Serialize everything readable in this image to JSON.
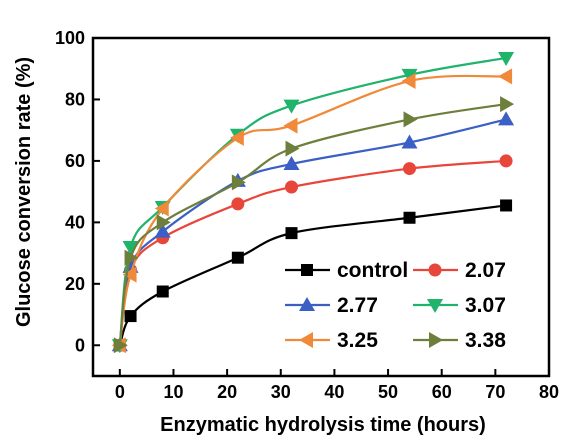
{
  "chart_data": {
    "type": "line",
    "title": "",
    "xlabel": "Enzymatic hydrolysis time (hours)",
    "ylabel": "Glucose conversion rate (%)",
    "xlim": [
      -5,
      80
    ],
    "ylim": [
      -10,
      100
    ],
    "xticks": [
      0,
      10,
      20,
      30,
      40,
      50,
      60,
      70,
      80
    ],
    "yticks": [
      0,
      20,
      40,
      60,
      80,
      100
    ],
    "x": [
      0,
      2,
      8,
      22,
      32,
      54,
      72
    ],
    "grid": false,
    "legend_position": "bottom-right",
    "series": [
      {
        "name": "control",
        "color": "#000000",
        "marker": "square",
        "values": [
          0,
          9.5,
          17.5,
          28.5,
          36.5,
          41.5,
          45.5
        ]
      },
      {
        "name": "2.07",
        "color": "#e8463b",
        "marker": "circle",
        "values": [
          0,
          24.5,
          35,
          46,
          51.5,
          57.5,
          60
        ]
      },
      {
        "name": "2.77",
        "color": "#3b5fc4",
        "marker": "triangle-up",
        "values": [
          0,
          25.5,
          37,
          53.5,
          59,
          66,
          73.5
        ]
      },
      {
        "name": "3.07",
        "color": "#20b36b",
        "marker": "triangle-down",
        "values": [
          0,
          32,
          45,
          68.5,
          78,
          88,
          93.5
        ]
      },
      {
        "name": "3.25",
        "color": "#f08a3a",
        "marker": "triangle-left",
        "values": [
          0,
          23,
          44.5,
          67.5,
          71.5,
          86,
          87.5
        ]
      },
      {
        "name": "3.38",
        "color": "#6e7f3c",
        "marker": "triangle-right",
        "values": [
          0,
          28.5,
          40,
          53,
          64,
          73.5,
          78.5
        ]
      }
    ]
  }
}
